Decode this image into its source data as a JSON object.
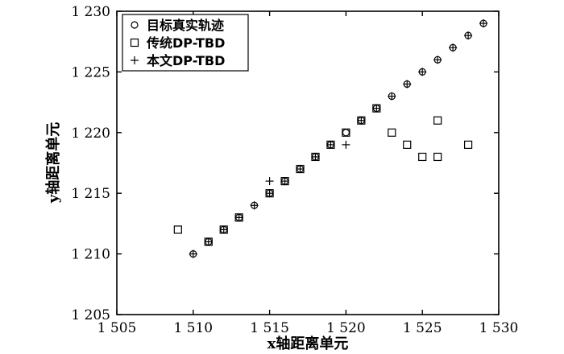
{
  "chart_data": {
    "type": "scatter",
    "xlabel": "x轴距离单元",
    "ylabel": "y轴距离单元",
    "xlim": [
      1505,
      1530
    ],
    "ylim": [
      1205,
      1230
    ],
    "x_ticks": [
      1505,
      1510,
      1515,
      1520,
      1525,
      1530
    ],
    "y_ticks": [
      1205,
      1210,
      1215,
      1220,
      1225,
      1230
    ],
    "x_tick_labels": [
      "1 505",
      "1 510",
      "1 515",
      "1 520",
      "1 525",
      "1 530"
    ],
    "y_tick_labels": [
      "1 205",
      "1 210",
      "1 215",
      "1 220",
      "1 225",
      "1 230"
    ],
    "legend_position": "top-left",
    "grid": false,
    "series": [
      {
        "name": "目标真实轨迹",
        "marker": "circle",
        "points": [
          [
            1510,
            1210
          ],
          [
            1511,
            1211
          ],
          [
            1512,
            1212
          ],
          [
            1513,
            1213
          ],
          [
            1514,
            1214
          ],
          [
            1515,
            1215
          ],
          [
            1516,
            1216
          ],
          [
            1517,
            1217
          ],
          [
            1518,
            1218
          ],
          [
            1519,
            1219
          ],
          [
            1520,
            1220
          ],
          [
            1521,
            1221
          ],
          [
            1522,
            1222
          ],
          [
            1523,
            1223
          ],
          [
            1524,
            1224
          ],
          [
            1525,
            1225
          ],
          [
            1526,
            1226
          ],
          [
            1527,
            1227
          ],
          [
            1528,
            1228
          ],
          [
            1529,
            1229
          ]
        ]
      },
      {
        "name": "传统DP-TBD",
        "marker": "square",
        "points": [
          [
            1509,
            1212
          ],
          [
            1511,
            1211
          ],
          [
            1512,
            1212
          ],
          [
            1513,
            1213
          ],
          [
            1515,
            1215
          ],
          [
            1516,
            1216
          ],
          [
            1517,
            1217
          ],
          [
            1518,
            1218
          ],
          [
            1519,
            1219
          ],
          [
            1520,
            1220
          ],
          [
            1521,
            1221
          ],
          [
            1522,
            1222
          ],
          [
            1523,
            1220
          ],
          [
            1524,
            1219
          ],
          [
            1525,
            1218
          ],
          [
            1526,
            1218
          ],
          [
            1526,
            1221
          ],
          [
            1528,
            1219
          ]
        ]
      },
      {
        "name": "本文DP-TBD",
        "marker": "plus",
        "points": [
          [
            1510,
            1210
          ],
          [
            1511,
            1211
          ],
          [
            1512,
            1212
          ],
          [
            1513,
            1213
          ],
          [
            1514,
            1214
          ],
          [
            1515,
            1215
          ],
          [
            1515,
            1216
          ],
          [
            1516,
            1216
          ],
          [
            1517,
            1217
          ],
          [
            1518,
            1218
          ],
          [
            1519,
            1219
          ],
          [
            1520,
            1219
          ],
          [
            1521,
            1221
          ],
          [
            1522,
            1222
          ],
          [
            1523,
            1223
          ],
          [
            1524,
            1224
          ],
          [
            1525,
            1225
          ],
          [
            1526,
            1226
          ],
          [
            1527,
            1227
          ],
          [
            1528,
            1228
          ],
          [
            1529,
            1229
          ]
        ]
      }
    ]
  }
}
